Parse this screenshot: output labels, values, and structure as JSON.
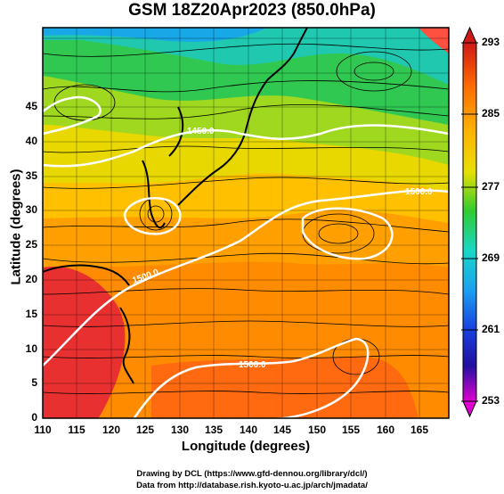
{
  "title": "GSM 18Z20Apr2023 (850.0hPa)",
  "x_axis": {
    "label": "Longitude (degrees)",
    "ticks": [
      "110",
      "115",
      "120",
      "125",
      "130",
      "135",
      "140",
      "145",
      "150",
      "155",
      "160",
      "165"
    ]
  },
  "y_axis": {
    "label": "Latitude  (degrees)",
    "ticks": [
      "0",
      "5",
      "10",
      "15",
      "20",
      "25",
      "30",
      "35",
      "40",
      "45"
    ]
  },
  "colorbar": {
    "ticks": [
      "293",
      "285",
      "277",
      "269",
      "261",
      "253"
    ],
    "colors": [
      "#d01818",
      "#ff6a00",
      "#ffb000",
      "#e8e000",
      "#30cc30",
      "#18d8c8",
      "#1aa0f0",
      "#1840e0",
      "#2010a0",
      "#e000d0"
    ]
  },
  "contour_labels": {
    "c1500": "1500.0",
    "c1450": "1450.0",
    "c1550": "1550.0"
  },
  "credits": {
    "line1": "Drawing by DCL (https://www.gfd-dennou.org/library/dcl/)",
    "line2": "Data from http://database.rish.kyoto-u.ac.jp/arch/jmadata/"
  }
}
